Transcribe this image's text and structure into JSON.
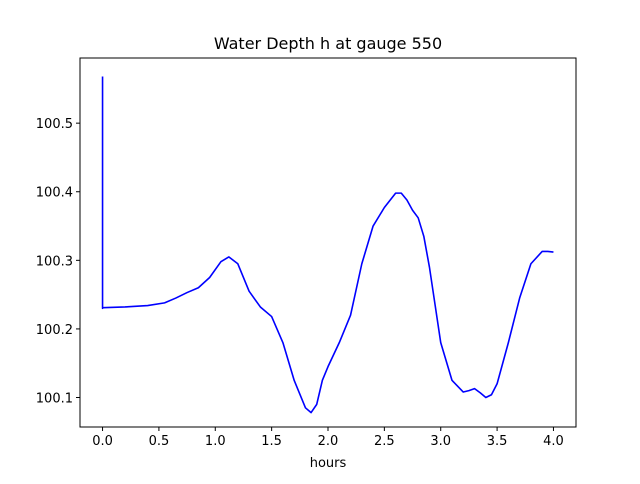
{
  "chart_data": {
    "type": "line",
    "title": "Water Depth h at gauge 550",
    "xlabel": "hours",
    "ylabel": "",
    "xlim": [
      -0.2,
      4.2
    ],
    "ylim": [
      100.057,
      100.595
    ],
    "grid": false,
    "legend": "none",
    "xticks": [
      0.0,
      0.5,
      1.0,
      1.5,
      2.0,
      2.5,
      3.0,
      3.5,
      4.0
    ],
    "xtick_labels": [
      "0.0",
      "0.5",
      "1.0",
      "1.5",
      "2.0",
      "2.5",
      "3.0",
      "3.5",
      "4.0"
    ],
    "yticks": [
      100.1,
      100.2,
      100.3,
      100.4,
      100.5
    ],
    "ytick_labels": [
      "100.1",
      "100.2",
      "100.3",
      "100.4",
      "100.5"
    ],
    "series": [
      {
        "name": "",
        "color": "#0000ff",
        "x": [
          0.0,
          0.0,
          0.0,
          0.2,
          0.4,
          0.55,
          0.65,
          0.75,
          0.85,
          0.95,
          1.05,
          1.12,
          1.2,
          1.3,
          1.4,
          1.5,
          1.6,
          1.7,
          1.8,
          1.85,
          1.9,
          1.95,
          2.0,
          2.1,
          2.2,
          2.3,
          2.4,
          2.5,
          2.6,
          2.65,
          2.7,
          2.75,
          2.8,
          2.85,
          2.9,
          3.0,
          3.1,
          3.2,
          3.25,
          3.3,
          3.35,
          3.4,
          3.45,
          3.5,
          3.6,
          3.7,
          3.8,
          3.9,
          3.95,
          4.0
        ],
        "values": [
          100.568,
          100.23,
          100.231,
          100.232,
          100.234,
          100.238,
          100.245,
          100.253,
          100.26,
          100.275,
          100.298,
          100.305,
          100.295,
          100.255,
          100.232,
          100.218,
          100.18,
          100.125,
          100.085,
          100.078,
          100.09,
          100.125,
          100.145,
          100.18,
          100.22,
          100.295,
          100.35,
          100.377,
          100.398,
          100.398,
          100.388,
          100.373,
          100.362,
          100.335,
          100.29,
          100.18,
          100.125,
          100.108,
          100.11,
          100.113,
          100.107,
          100.1,
          100.104,
          100.12,
          100.18,
          100.245,
          100.295,
          100.313,
          100.313,
          100.312
        ]
      }
    ]
  }
}
